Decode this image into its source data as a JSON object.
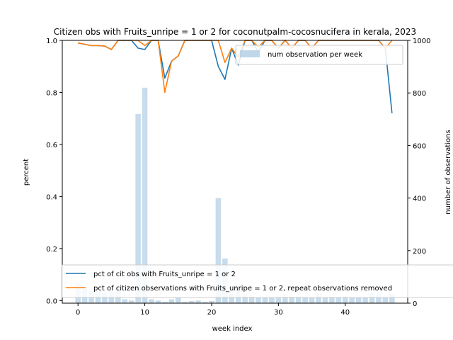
{
  "chart_data": {
    "type": "line",
    "title": "Citizen obs with Fruits_unripe = 1 or 2 for coconutpalm-cocosnucifera in kerala, 2023",
    "xlabel": "week index",
    "ylabel": "percent",
    "y2label": "number of observations",
    "xlim": [
      -2.35,
      49.35
    ],
    "ylim": [
      -0.01,
      1.0
    ],
    "y2lim": [
      0,
      1000
    ],
    "xticks": [
      "0",
      "10",
      "20",
      "30",
      "40"
    ],
    "yticks": [
      "0.0",
      "0.2",
      "0.4",
      "0.6",
      "0.8",
      "1.0"
    ],
    "y2ticks": [
      "0",
      "200",
      "400",
      "600",
      "800",
      "1000"
    ],
    "x": [
      0,
      1,
      2,
      3,
      4,
      5,
      6,
      7,
      8,
      9,
      10,
      11,
      12,
      13,
      14,
      15,
      16,
      17,
      18,
      19,
      20,
      21,
      22,
      23,
      24,
      25,
      26,
      27,
      28,
      29,
      30,
      31,
      32,
      33,
      34,
      35,
      36,
      37,
      38,
      39,
      40,
      41,
      42,
      43,
      44,
      45,
      46,
      47
    ],
    "series": [
      {
        "name": "pct of cit obs with Fruits_unripe = 1 or 2",
        "color": "#1f77b4",
        "values": [
          0.99,
          0.985,
          0.98,
          0.98,
          0.978,
          0.965,
          1.0,
          1.0,
          1.0,
          0.97,
          0.965,
          1.0,
          1.0,
          0.855,
          0.92,
          0.94,
          1.0,
          1.0,
          1.0,
          1.0,
          1.0,
          0.9,
          0.85,
          0.97,
          0.905,
          1.0,
          1.0,
          0.955,
          1.0,
          1.0,
          0.97,
          1.0,
          0.97,
          1.0,
          1.0,
          0.97,
          1.0,
          1.0,
          1.0,
          1.0,
          1.0,
          1.0,
          1.0,
          1.0,
          1.0,
          1.0,
          0.97,
          0.72
        ]
      },
      {
        "name": "pct of citizen observations with Fruits_unripe = 1 or 2, repeat observations removed",
        "color": "#ff7f0e",
        "values": [
          0.99,
          0.985,
          0.98,
          0.98,
          0.978,
          0.965,
          1.0,
          1.0,
          1.0,
          1.0,
          0.98,
          1.0,
          1.0,
          0.8,
          0.92,
          0.94,
          1.0,
          1.0,
          1.0,
          1.0,
          1.0,
          1.0,
          0.915,
          0.97,
          0.935,
          1.0,
          1.0,
          0.975,
          1.0,
          1.0,
          0.97,
          1.0,
          0.97,
          1.0,
          1.0,
          0.97,
          1.0,
          1.0,
          1.0,
          1.0,
          1.0,
          1.0,
          1.0,
          1.0,
          1.0,
          1.0,
          0.97,
          1.0
        ]
      }
    ],
    "bars": {
      "name": "num observation per week",
      "color": "#a9c9e2",
      "values": [
        75,
        55,
        45,
        50,
        40,
        45,
        55,
        15,
        10,
        720,
        820,
        15,
        10,
        5,
        15,
        20,
        5,
        8,
        10,
        5,
        8,
        400,
        170,
        35,
        65,
        35,
        25,
        20,
        20,
        20,
        20,
        25,
        25,
        25,
        20,
        20,
        35,
        20,
        20,
        20,
        25,
        20,
        20,
        20,
        40,
        35,
        20,
        35
      ]
    },
    "legend_top": {
      "label": "num observation per week",
      "position": "top-right"
    },
    "legend_bottom": {
      "position": "lower-left"
    },
    "grid": false
  }
}
